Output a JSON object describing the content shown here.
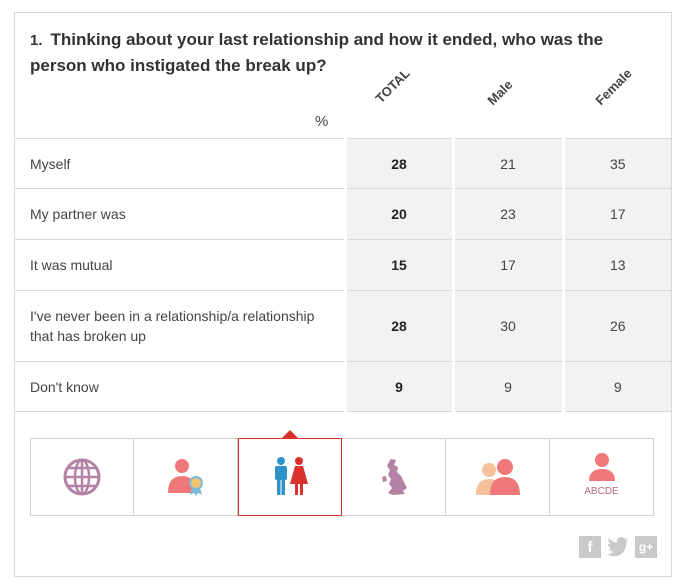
{
  "question": {
    "number": "1.",
    "text": "Thinking about your last relationship and how it ended, who was the person who instigated the break up?"
  },
  "header": {
    "unit": "%",
    "columns": [
      "TOTAL",
      "Male",
      "Female"
    ]
  },
  "chart_data": {
    "type": "table",
    "title": "Thinking about your last relationship and how it ended, who was the person who instigated the break up?",
    "unit": "%",
    "columns": [
      "TOTAL",
      "Male",
      "Female"
    ],
    "rows": [
      {
        "label": "Myself",
        "values": [
          28,
          21,
          35
        ]
      },
      {
        "label": "My partner was",
        "values": [
          20,
          23,
          17
        ]
      },
      {
        "label": "It was mutual",
        "values": [
          15,
          17,
          13
        ]
      },
      {
        "label": "I've never been in a relationship/a relationship that has broken up",
        "values": [
          28,
          30,
          26
        ]
      },
      {
        "label": "Don't know",
        "values": [
          9,
          9,
          9
        ]
      }
    ]
  },
  "tabs": [
    {
      "icon": "globe-icon",
      "label": ""
    },
    {
      "icon": "person-award-icon",
      "label": ""
    },
    {
      "icon": "male-female-icon",
      "label": "",
      "active": true
    },
    {
      "icon": "uk-map-icon",
      "label": ""
    },
    {
      "icon": "two-people-icon",
      "label": ""
    },
    {
      "icon": "person-abcde-icon",
      "label": "ABCDE"
    }
  ],
  "colors": {
    "accent": "#d9312b",
    "icon_pink": "#f07878",
    "icon_purple": "#b382a5",
    "male_blue": "#2f93c9"
  },
  "social": [
    "facebook-icon",
    "twitter-icon",
    "google-plus-icon"
  ]
}
